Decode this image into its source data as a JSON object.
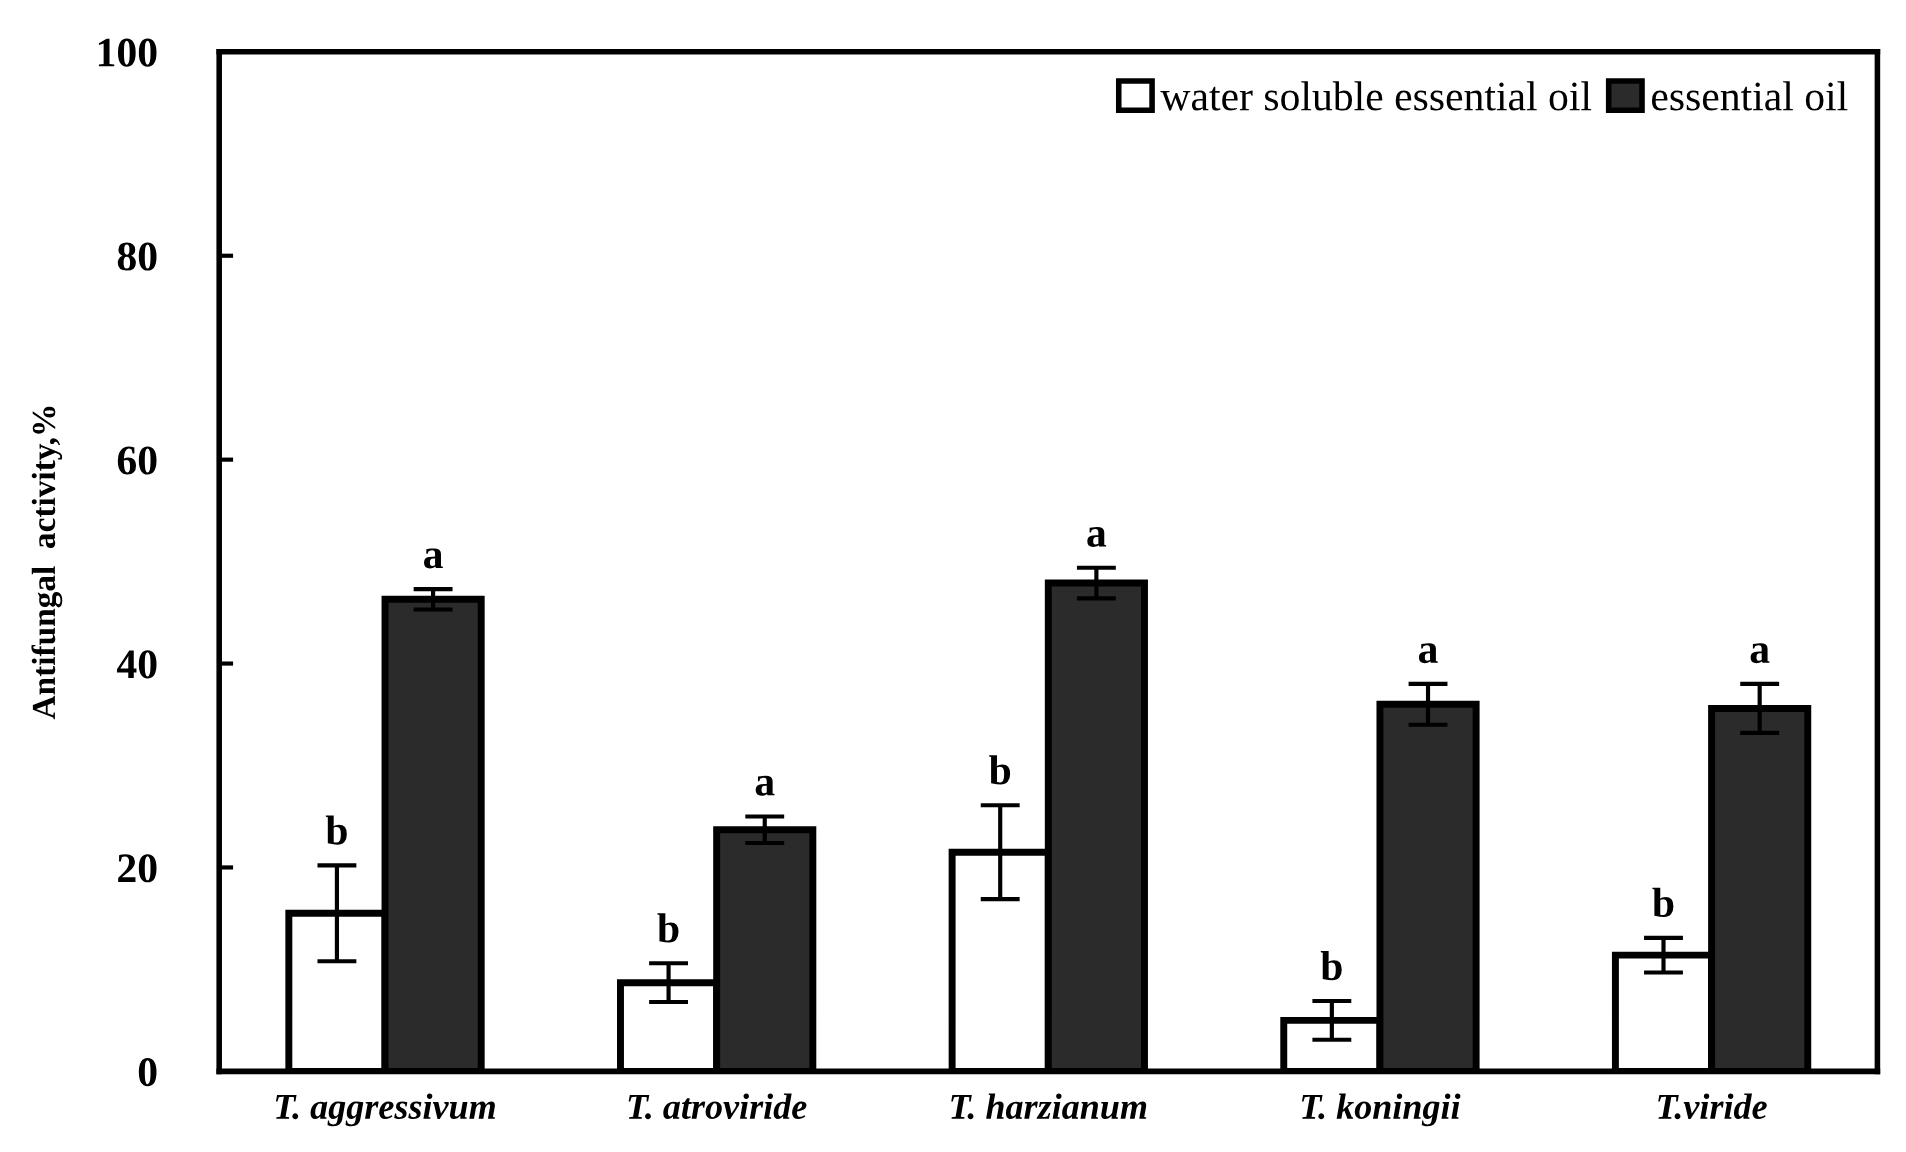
{
  "chart_data": {
    "type": "bar",
    "ylabel": "Antifungal  activity,%",
    "categories": [
      "T. aggressivum",
      "T. atroviride",
      "T. harzianum",
      "T. koningii",
      "T.viride"
    ],
    "series": [
      {
        "name": "water soluble essential oil",
        "color": "#ffffff",
        "values": [
          15.5,
          8.7,
          21.5,
          5.0,
          11.4
        ],
        "errors": [
          4.7,
          1.9,
          4.6,
          1.9,
          1.7
        ],
        "value_labels": [
          "b",
          "b",
          "b",
          "b",
          "b"
        ]
      },
      {
        "name": "essential oil",
        "color": "#2b2b2b",
        "values": [
          46.3,
          23.7,
          47.9,
          36.0,
          35.6
        ],
        "errors": [
          1.0,
          1.3,
          1.5,
          2.0,
          2.4
        ],
        "value_labels": [
          "a",
          "a",
          "a",
          "a",
          "a"
        ]
      }
    ],
    "ylim": [
      0,
      100
    ],
    "yticks": [
      0,
      20,
      40,
      60,
      80,
      100
    ],
    "grid": false,
    "legend": "top right"
  }
}
